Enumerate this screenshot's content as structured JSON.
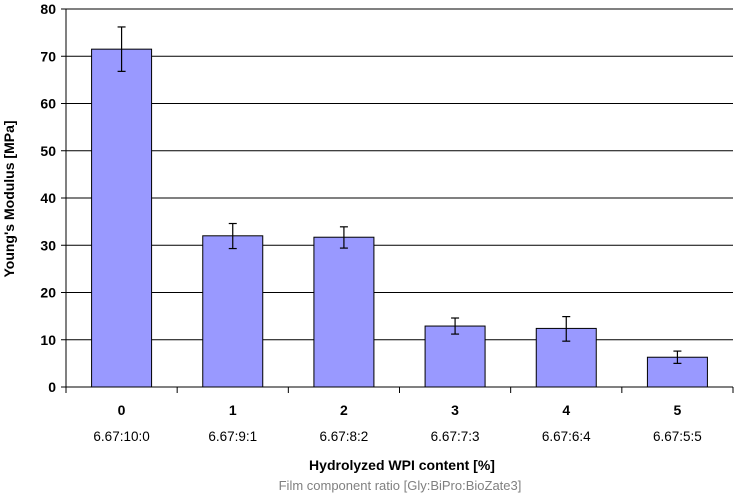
{
  "chart_data": {
    "type": "bar",
    "categories": [
      "0",
      "1",
      "2",
      "3",
      "4",
      "5"
    ],
    "category_ratios": [
      "6.67:10:0",
      "6.67:9:1",
      "6.67:8:2",
      "6.67:7:3",
      "6.67:6:4",
      "6.67:5:5"
    ],
    "values": [
      71.5,
      32.0,
      31.7,
      12.9,
      12.4,
      6.3
    ],
    "error_upper": [
      76.2,
      34.6,
      33.9,
      14.6,
      14.9,
      7.6
    ],
    "error_lower": [
      66.8,
      29.3,
      29.4,
      11.2,
      9.7,
      5.0
    ],
    "ylim": [
      0,
      80
    ],
    "yticks": [
      0,
      10,
      20,
      30,
      40,
      50,
      60,
      70,
      80
    ],
    "grid": true,
    "xlabel": "Hydrolyzed WPI content [%]",
    "xsublabel": "Film component ratio [Gly:BiPro:BioZate3]",
    "ylabel": "Young's Modulus [MPa]",
    "bar_color": "#9999ff",
    "bar_edge_color": "#000000",
    "grid_color": "#000000"
  }
}
